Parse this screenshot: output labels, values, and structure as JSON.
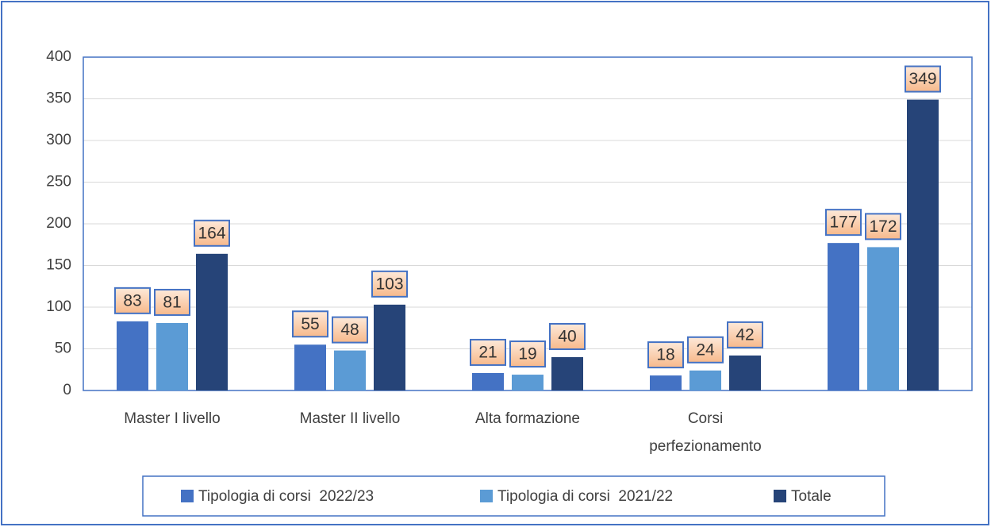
{
  "chart_data": {
    "type": "bar",
    "categories": [
      "Master I livello",
      "Master II livello",
      "Alta formazione",
      "Corsi perfezionamento",
      null
    ],
    "series": [
      {
        "name": "Tipologia di corsi  2022/23",
        "color": "#4472c4",
        "values": [
          83,
          55,
          21,
          18,
          177
        ]
      },
      {
        "name": "Tipologia di corsi  2021/22",
        "color": "#5b9bd5",
        "values": [
          81,
          48,
          19,
          24,
          172
        ]
      },
      {
        "name": "Totale",
        "color": "#264478",
        "values": [
          164,
          103,
          40,
          42,
          349
        ]
      }
    ],
    "ylim": [
      0,
      400
    ],
    "yticks": [
      0,
      50,
      100,
      150,
      200,
      250,
      300,
      350,
      400
    ],
    "grid": true,
    "legend": "bottom"
  }
}
